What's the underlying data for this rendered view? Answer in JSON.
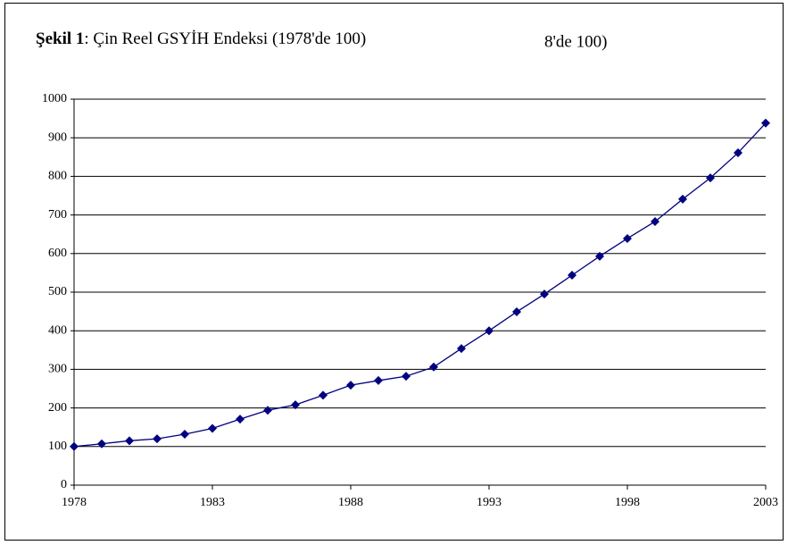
{
  "chart_data": {
    "type": "line",
    "title_bold": "Şekil 1",
    "title": ": Çin Reel GSYİH Endeksi (1978'de 100)",
    "annotation": "8'de 100)",
    "x": [
      1978,
      1979,
      1980,
      1981,
      1982,
      1983,
      1984,
      1985,
      1986,
      1987,
      1988,
      1989,
      1990,
      1991,
      1992,
      1993,
      1994,
      1995,
      1996,
      1997,
      1998,
      1999,
      2000,
      2001,
      2002,
      2003
    ],
    "series": [
      {
        "color": "#000080",
        "values": [
          100,
          107,
          115,
          120,
          132,
          147,
          171,
          194,
          208,
          233,
          259,
          271,
          282,
          306,
          354,
          400,
          449,
          495,
          544,
          593,
          639,
          683,
          741,
          796,
          861,
          938
        ]
      }
    ],
    "xlim": [
      1978,
      2003
    ],
    "xticks": [
      1978,
      1983,
      1988,
      1993,
      1998,
      2003
    ],
    "ylim": [
      0,
      1000
    ],
    "yticks": [
      0,
      100,
      200,
      300,
      400,
      500,
      600,
      700,
      800,
      900,
      1000
    ],
    "grid": true
  }
}
